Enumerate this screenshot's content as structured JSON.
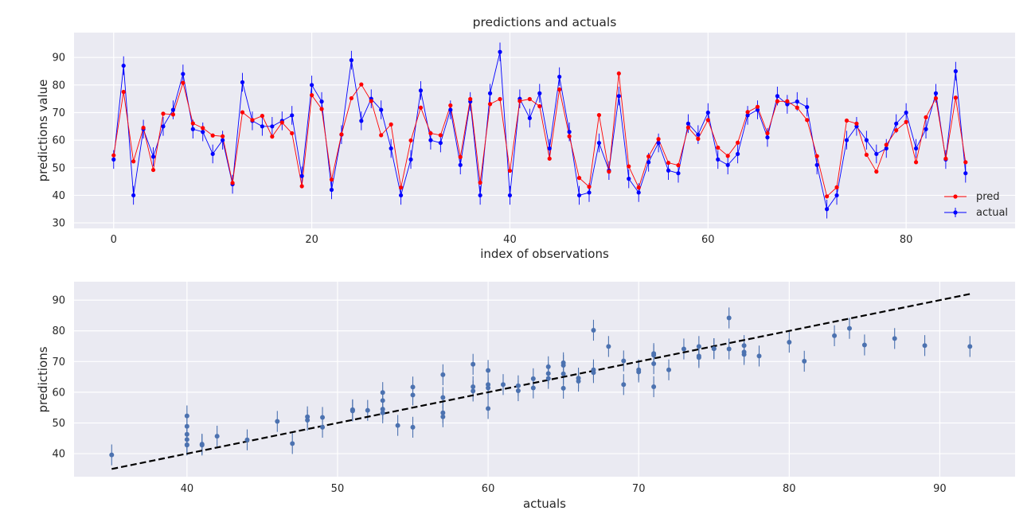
{
  "colors": {
    "background": "#eaeaf2",
    "grid": "#ffffff",
    "pred": "#ff0000",
    "actual": "#0000ff",
    "scatter": "#4c72b0",
    "ideal_line": "#000000"
  },
  "chart_data": [
    {
      "type": "line",
      "title": "predictions and actuals",
      "xlabel": "index of observations",
      "ylabel": "predictions value",
      "xlim": [
        -4,
        91
      ],
      "ylim": [
        28,
        99
      ],
      "xticks": [
        0,
        20,
        40,
        60,
        80
      ],
      "yticks": [
        30,
        40,
        50,
        60,
        70,
        80,
        90
      ],
      "grid": true,
      "legend_placement": "lower-right",
      "error_bar_halfwidth": 3.4,
      "series": [
        {
          "name": "pred",
          "values": [
            54.5,
            77.5,
            52.3,
            64.5,
            49.2,
            69.6,
            69.3,
            80.8,
            66.1,
            64.4,
            61.7,
            61.4,
            44.5,
            70.1,
            67.3,
            68.8,
            61.3,
            66.4,
            62.5,
            43.3,
            76.3,
            71.3,
            45.7,
            62.1,
            75.2,
            80.2,
            74.2,
            61.8,
            65.7,
            42.8,
            59.9,
            71.8,
            62.5,
            61.8,
            72.6,
            53.9,
            74.9,
            44.6,
            73.1,
            74.9,
            48.9,
            74.2,
            74.9,
            72.3,
            53.3,
            78.4,
            61.4,
            46.3,
            43.1,
            69.1,
            48.6,
            84.2,
            50.5,
            42.8,
            54.1,
            60.4,
            51.8,
            50.9,
            64.6,
            60.5,
            67.3,
            57.3,
            54.3,
            59.1,
            70.2,
            72.1,
            62.5,
            74.1,
            74.1,
            71.8,
            67.3,
            54.2,
            39.6,
            42.9,
            67.1,
            66.0,
            54.7,
            48.6,
            58.3,
            63.6,
            66.6,
            52.0,
            68.3,
            75.2,
            53.3,
            75.4,
            52.0
          ]
        },
        {
          "name": "actual",
          "values": [
            53,
            87,
            40,
            64,
            54,
            65,
            71,
            84,
            64,
            63,
            55,
            60,
            44,
            81,
            67,
            65,
            65,
            67,
            69,
            47,
            80,
            74,
            42,
            62,
            89,
            67,
            75,
            71,
            57,
            40,
            53,
            78,
            60,
            59,
            71,
            51,
            74,
            40,
            77,
            92,
            40,
            75,
            68,
            77,
            57,
            83,
            63,
            40,
            41,
            59,
            49,
            76,
            46,
            41,
            52,
            59,
            49,
            48,
            66,
            62,
            70,
            53,
            51,
            55,
            69,
            71,
            61,
            76,
            73,
            74,
            72,
            51,
            35,
            40,
            60,
            65,
            60,
            55,
            57,
            66,
            70,
            57,
            64,
            77,
            53,
            85,
            48
          ]
        }
      ]
    },
    {
      "type": "scatter",
      "title": "",
      "xlabel": "actuals",
      "ylabel": "predictions",
      "xlim": [
        32.5,
        95
      ],
      "ylim": [
        32.5,
        96
      ],
      "xticks": [
        40,
        50,
        60,
        70,
        80,
        90
      ],
      "yticks": [
        40,
        50,
        60,
        70,
        80,
        90
      ],
      "grid": true,
      "error_bar_halfwidth": 3.4,
      "ideal_line": {
        "x": [
          35,
          92
        ],
        "y": [
          35,
          92
        ],
        "style": "dashed"
      }
    }
  ]
}
